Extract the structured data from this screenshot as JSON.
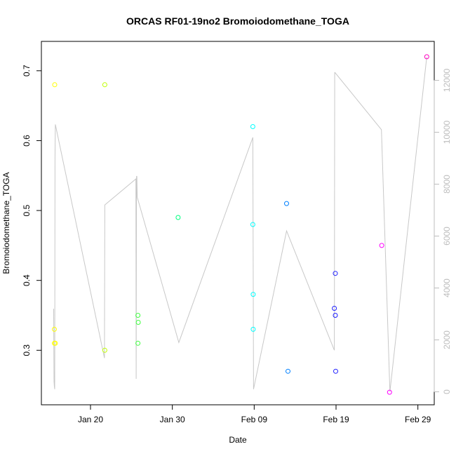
{
  "chart_data": {
    "type": "scatter",
    "title": "ORCAS RF01-19no2 Bromoiodomethane_TOGA",
    "xlabel": "Date",
    "ylabel": "Bromoiodomethane_TOGA",
    "x_axis": {
      "kind": "date",
      "year": 2016,
      "range": [
        "2016-01-14",
        "2016-03-02"
      ],
      "ticks": [
        {
          "date": "2016-01-20",
          "label": "Jan 20"
        },
        {
          "date": "2016-01-30",
          "label": "Jan 30"
        },
        {
          "date": "2016-02-09",
          "label": "Feb 09"
        },
        {
          "date": "2016-02-19",
          "label": "Feb 19"
        },
        {
          "date": "2016-02-29",
          "label": "Feb 29"
        }
      ]
    },
    "y_axis": {
      "range": [
        0.222,
        0.742
      ],
      "ticks": [
        0.3,
        0.4,
        0.5,
        0.6,
        0.7
      ],
      "tick_labels": [
        "0.3",
        "0.4",
        "0.5",
        "0.6",
        "0.7"
      ]
    },
    "y2_axis": {
      "color": "#bdbdbd",
      "range": [
        -500,
        13500
      ],
      "ticks": [
        0,
        2000,
        4000,
        6000,
        8000,
        10000,
        12000
      ],
      "tick_labels": [
        "0",
        "2000",
        "4000",
        "6000",
        "8000",
        "10000",
        "12000"
      ]
    },
    "grid": false,
    "legend": "none",
    "points": [
      {
        "x": "2016-01-15T15:00",
        "y": 0.68,
        "color": "#ffff00"
      },
      {
        "x": "2016-01-15T14:00",
        "y": 0.33,
        "color": "#ffff00"
      },
      {
        "x": "2016-01-15T14:00",
        "y": 0.31,
        "color": "#ffff00"
      },
      {
        "x": "2016-01-15T17:00",
        "y": 0.31,
        "color": "#ffff00"
      },
      {
        "x": "2016-01-21T18:00",
        "y": 0.68,
        "color": "#bfff00"
      },
      {
        "x": "2016-01-21T18:00",
        "y": 0.3,
        "color": "#bfff00"
      },
      {
        "x": "2016-01-25T19:00",
        "y": 0.35,
        "color": "#40ff40"
      },
      {
        "x": "2016-01-25T20:00",
        "y": 0.34,
        "color": "#40ff40"
      },
      {
        "x": "2016-01-25T19:00",
        "y": 0.31,
        "color": "#40ff40"
      },
      {
        "x": "2016-01-30T17:00",
        "y": 0.49,
        "color": "#00ff80"
      },
      {
        "x": "2016-02-08T20:00",
        "y": 0.62,
        "color": "#00ffff"
      },
      {
        "x": "2016-02-08T20:00",
        "y": 0.48,
        "color": "#00ffff"
      },
      {
        "x": "2016-02-08T21:00",
        "y": 0.38,
        "color": "#00ffff"
      },
      {
        "x": "2016-02-08T21:00",
        "y": 0.33,
        "color": "#00ffff"
      },
      {
        "x": "2016-02-12T23:00",
        "y": 0.51,
        "color": "#0080ff"
      },
      {
        "x": "2016-02-13T03:00",
        "y": 0.27,
        "color": "#0080ff"
      },
      {
        "x": "2016-02-18T19:00",
        "y": 0.36,
        "color": "#2020ff"
      },
      {
        "x": "2016-02-18T22:00",
        "y": 0.41,
        "color": "#2020ff"
      },
      {
        "x": "2016-02-18T22:00",
        "y": 0.35,
        "color": "#2020ff"
      },
      {
        "x": "2016-02-18T23:00",
        "y": 0.27,
        "color": "#2020ff"
      },
      {
        "x": "2016-02-24T14:00",
        "y": 0.45,
        "color": "#ff00ff"
      },
      {
        "x": "2016-02-25T13:00",
        "y": 0.24,
        "color": "#ff00ff"
      },
      {
        "x": "2016-03-01T02:00",
        "y": 0.72,
        "color": "#ff00c0"
      }
    ],
    "secondary_line": {
      "color": "#c8c8c8",
      "axis": "y2",
      "x": [
        "2016-01-15T12:00",
        "2016-01-15T13:00",
        "2016-01-15T14:00",
        "2016-01-15T15:00",
        "2016-01-15T16:00",
        "2016-01-15T17:00",
        "2016-01-21T17:00",
        "2016-01-21T18:00",
        "2016-01-25T13:00",
        "2016-01-25T14:00",
        "2016-01-25T15:00",
        "2016-01-25T16:00",
        "2016-01-25T17:00",
        "2016-01-30T19:00",
        "2016-02-08T20:00",
        "2016-02-08T22:00",
        "2016-02-12T23:00",
        "2016-02-18T19:00",
        "2016-02-18T20:00",
        "2016-02-18T21:00",
        "2016-02-24T13:00",
        "2016-02-25T14:00",
        "2016-03-01T02:00"
      ],
      "y": [
        3200,
        400,
        200,
        100,
        9000,
        10300,
        1300,
        7200,
        8200,
        500,
        8300,
        8300,
        7500,
        1900,
        9800,
        100,
        6200,
        1600,
        12300,
        12300,
        10100,
        0,
        12900
      ]
    }
  }
}
